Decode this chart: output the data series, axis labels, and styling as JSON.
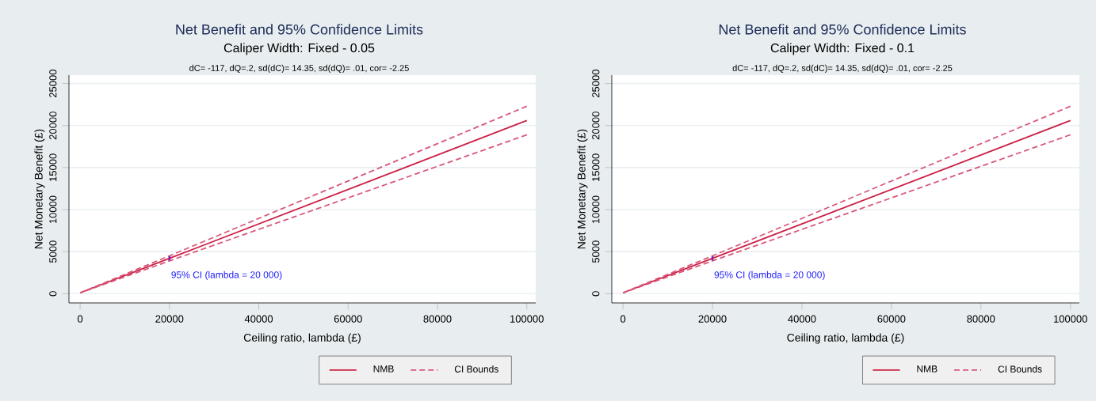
{
  "chart_data": [
    {
      "type": "line",
      "title": "Net Benefit and 95% Confidence Limits",
      "subtitle": "Caliper Width: Fixed - 0.05",
      "xlabel": "Ceiling ratio, lambda (£)",
      "ylabel": "Net Monetary Benefit (£)",
      "annotations": [
        "dC= -117, dQ=.2, sd(dC)= 14.35, sd(dQ)= .01, cor= -2.25",
        "95% CI (lambda = 20 000)"
      ],
      "x": [
        0,
        20000,
        100000
      ],
      "series": [
        {
          "name": "NMB",
          "color": "#cc1f45",
          "values": [
            100,
            4200,
            20600
          ],
          "errors": [
            null,
            [
              3900,
              4500
            ],
            null
          ]
        },
        {
          "name": "CI Bounds",
          "color": "#d9577a",
          "line_style": "dashed",
          "values": [
            100,
            4500,
            22300
          ]
        },
        {
          "color": "#d9577a",
          "line_style": "dashed",
          "values": [
            100,
            3900,
            18900
          ]
        }
      ],
      "xlim": [
        -2500,
        102000
      ],
      "ylim": [
        -1100,
        26000
      ],
      "xticks": [
        0,
        20000,
        40000,
        60000,
        80000,
        100000
      ],
      "yticks": [
        0,
        5000,
        10000,
        15000,
        20000,
        25000
      ],
      "grid": "y",
      "legend": "bottom"
    },
    {
      "type": "line",
      "title": "Net Benefit and 95% Confidence Limits",
      "subtitle": "Caliper Width: Fixed - 0.1",
      "xlabel": "Ceiling ratio, lambda (£)",
      "ylabel": "Net Monetary Benefit (£)",
      "annotations": [
        "dC= -117, dQ=.2, sd(dC)= 14.35, sd(dQ)= .01, cor= -2.25",
        "95% CI (lambda = 20 000)"
      ],
      "x": [
        0,
        20000,
        100000
      ],
      "series": [
        {
          "name": "NMB",
          "color": "#cc1f45",
          "values": [
            100,
            4200,
            20600
          ],
          "errors": [
            null,
            [
              3900,
              4500
            ],
            null
          ]
        },
        {
          "name": "CI Bounds",
          "color": "#d9577a",
          "line_style": "dashed",
          "values": [
            100,
            4500,
            22300
          ]
        },
        {
          "color": "#d9577a",
          "line_style": "dashed",
          "values": [
            100,
            3900,
            18900
          ]
        }
      ],
      "xlim": [
        -2500,
        102000
      ],
      "ylim": [
        -1100,
        26000
      ],
      "xticks": [
        0,
        20000,
        40000,
        60000,
        80000,
        100000
      ],
      "yticks": [
        0,
        5000,
        10000,
        15000,
        20000,
        25000
      ],
      "grid": "y",
      "legend": "bottom"
    }
  ]
}
